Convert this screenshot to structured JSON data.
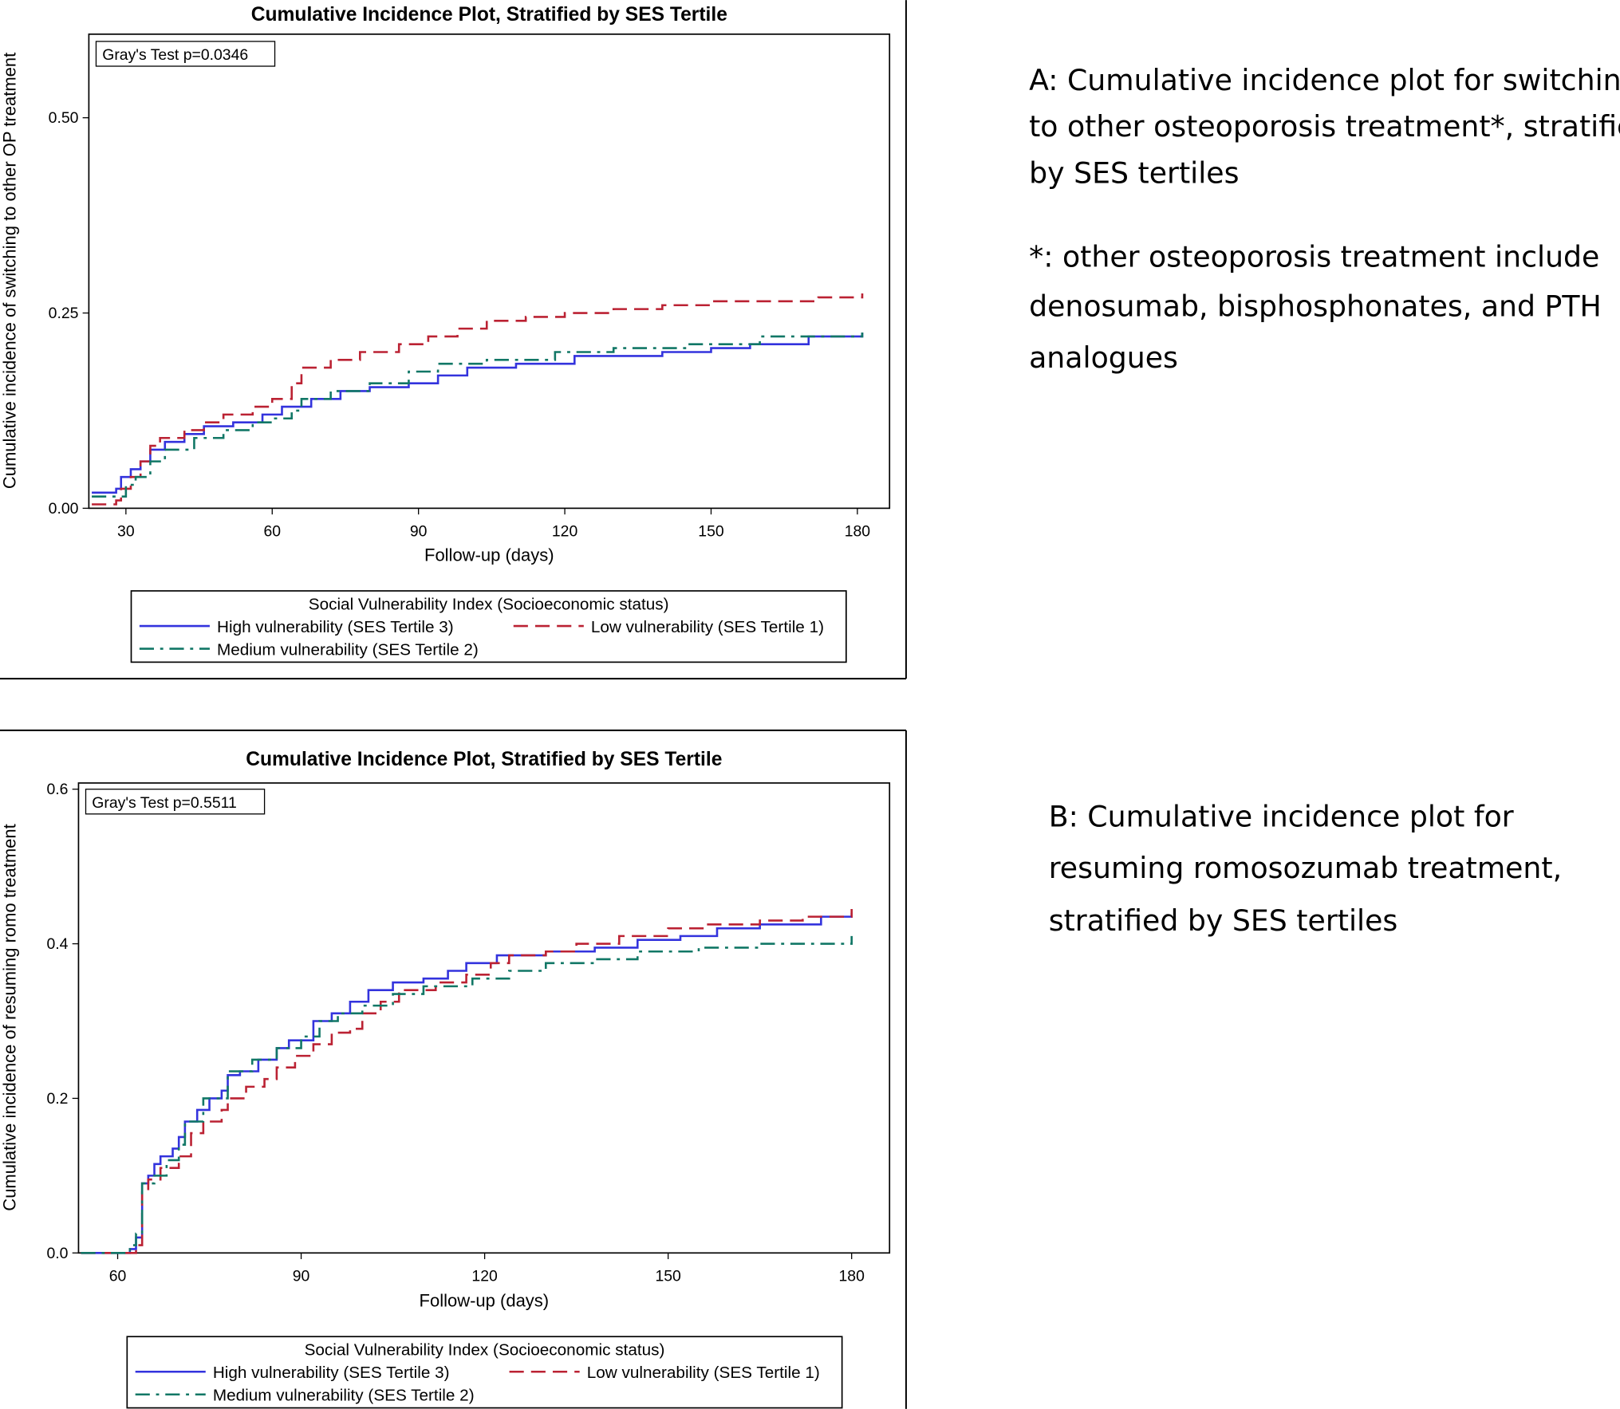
{
  "colors": {
    "high": "#3333dd",
    "low": "#bb2233",
    "medium": "#117766"
  },
  "chart_data": [
    {
      "type": "line",
      "step": true,
      "title": "Cumulative Incidence Plot, Stratified by SES Tertile",
      "annotation": "Gray's Test p=0.0346",
      "xlabel": "Follow-up (days)",
      "ylabel": "Cumulative incidence of switching to other OP treatment",
      "xlim": [
        22.4,
        186.6
      ],
      "ylim": [
        0,
        0.607
      ],
      "xticks": [
        30,
        60,
        90,
        120,
        150,
        180
      ],
      "xtick_labels": [
        "30",
        "60",
        "90",
        "120",
        "150",
        "180"
      ],
      "yticks": [
        0,
        0.25,
        0.5
      ],
      "ytick_labels": [
        "0.00",
        "0.25",
        "0.50"
      ],
      "grid": false,
      "legend": {
        "title": "Social Vulnerability Index (Socioeconomic status)",
        "placement": "bottom"
      },
      "series": [
        {
          "name": "High vulnerability (SES Tertile 3)",
          "style": "solid",
          "color_key": "high",
          "x": [
            23,
            28,
            29,
            31,
            33,
            35,
            38,
            42,
            46,
            52,
            58,
            62,
            68,
            74,
            80,
            88,
            94,
            100,
            110,
            122,
            140,
            150,
            158,
            170,
            181
          ],
          "y": [
            0.02,
            0.025,
            0.04,
            0.05,
            0.06,
            0.075,
            0.085,
            0.095,
            0.105,
            0.11,
            0.12,
            0.13,
            0.14,
            0.15,
            0.155,
            0.16,
            0.17,
            0.18,
            0.185,
            0.195,
            0.2,
            0.205,
            0.21,
            0.22,
            0.225
          ]
        },
        {
          "name": "Low vulnerability (SES Tertile 1)",
          "style": "dash",
          "color_key": "low",
          "x": [
            23,
            28,
            29,
            31,
            33,
            35,
            37,
            42,
            46,
            50,
            56,
            60,
            64,
            66,
            72,
            78,
            86,
            92,
            98,
            104,
            112,
            120,
            130,
            140,
            150,
            162,
            172,
            181
          ],
          "y": [
            0.005,
            0.01,
            0.025,
            0.04,
            0.06,
            0.08,
            0.09,
            0.1,
            0.11,
            0.12,
            0.13,
            0.14,
            0.16,
            0.18,
            0.19,
            0.2,
            0.21,
            0.22,
            0.23,
            0.24,
            0.245,
            0.25,
            0.255,
            0.26,
            0.265,
            0.265,
            0.27,
            0.275
          ]
        },
        {
          "name": "Medium vulnerability (SES Tertile 2)",
          "style": "dashdot",
          "color_key": "medium",
          "x": [
            23,
            28,
            30,
            32,
            35,
            38,
            44,
            50,
            56,
            60,
            64,
            66,
            72,
            80,
            88,
            94,
            104,
            118,
            130,
            145,
            160,
            181
          ],
          "y": [
            0.015,
            0.015,
            0.03,
            0.04,
            0.06,
            0.075,
            0.09,
            0.1,
            0.11,
            0.115,
            0.125,
            0.14,
            0.15,
            0.16,
            0.175,
            0.185,
            0.19,
            0.2,
            0.205,
            0.21,
            0.22,
            0.225
          ]
        }
      ]
    },
    {
      "type": "line",
      "step": true,
      "title": "Cumulative Incidence Plot, Stratified by SES Tertile",
      "annotation": "Gray's Test p=0.5511",
      "xlabel": "Follow-up (days)",
      "ylabel": "Cumulative incidence of resuming romo treatment",
      "xlim": [
        53.6,
        186.2
      ],
      "ylim": [
        0,
        0.608
      ],
      "xticks": [
        60,
        90,
        120,
        150,
        180
      ],
      "xtick_labels": [
        "60",
        "90",
        "120",
        "150",
        "180"
      ],
      "yticks": [
        0,
        0.2,
        0.4,
        0.6
      ],
      "ytick_labels": [
        "0.0",
        "0.2",
        "0.4",
        "0.6"
      ],
      "grid": false,
      "legend": {
        "title": "Social Vulnerability Index (Socioeconomic status)",
        "placement": "bottom"
      },
      "series": [
        {
          "name": "High vulnerability (SES Tertile 3)",
          "style": "solid",
          "color_key": "high",
          "x": [
            54,
            61,
            62,
            63,
            64,
            65,
            66,
            67,
            69,
            70,
            71,
            73,
            75,
            77,
            78,
            80,
            83,
            86,
            88,
            92,
            95,
            98,
            101,
            105,
            110,
            114,
            117,
            122,
            130,
            138,
            145,
            152,
            158,
            165,
            175,
            180
          ],
          "y": [
            0,
            0,
            0.005,
            0.02,
            0.09,
            0.1,
            0.115,
            0.125,
            0.135,
            0.15,
            0.17,
            0.185,
            0.2,
            0.21,
            0.23,
            0.235,
            0.25,
            0.265,
            0.275,
            0.3,
            0.31,
            0.325,
            0.34,
            0.35,
            0.355,
            0.365,
            0.375,
            0.385,
            0.39,
            0.395,
            0.405,
            0.41,
            0.42,
            0.425,
            0.435,
            0.44
          ]
        },
        {
          "name": "Low vulnerability (SES Tertile 1)",
          "style": "dash",
          "color_key": "low",
          "x": [
            54,
            62,
            63,
            64,
            65,
            67,
            70,
            72,
            74,
            77,
            78,
            81,
            84,
            86,
            89,
            92,
            95,
            98,
            100,
            103,
            106,
            112,
            117,
            121,
            124,
            130,
            135,
            142,
            150,
            156,
            165,
            172,
            180
          ],
          "y": [
            0,
            0,
            0.01,
            0.08,
            0.095,
            0.11,
            0.125,
            0.155,
            0.17,
            0.185,
            0.2,
            0.215,
            0.225,
            0.24,
            0.255,
            0.27,
            0.285,
            0.29,
            0.31,
            0.325,
            0.34,
            0.35,
            0.36,
            0.375,
            0.385,
            0.39,
            0.4,
            0.41,
            0.42,
            0.425,
            0.43,
            0.435,
            0.445
          ]
        },
        {
          "name": "Medium vulnerability (SES Tertile 2)",
          "style": "dashdot",
          "color_key": "medium",
          "x": [
            54,
            61,
            62,
            63,
            64,
            66,
            68,
            70,
            71,
            74,
            78,
            82,
            86,
            90,
            93,
            96,
            100,
            105,
            110,
            118,
            124,
            130,
            138,
            145,
            155,
            165,
            180
          ],
          "y": [
            0,
            0,
            0.01,
            0.025,
            0.09,
            0.1,
            0.12,
            0.14,
            0.17,
            0.2,
            0.235,
            0.25,
            0.265,
            0.28,
            0.3,
            0.31,
            0.32,
            0.335,
            0.345,
            0.355,
            0.365,
            0.375,
            0.38,
            0.39,
            0.395,
            0.4,
            0.41
          ]
        }
      ]
    }
  ],
  "captions": {
    "a": [
      "A: Cumulative incidence plot for switching",
      "to other osteoporosis treatment*, stratified",
      "by SES tertiles"
    ],
    "a_note": [
      "*: other osteoporosis treatment include",
      "denosumab, bisphosphonates, and PTH",
      "analogues"
    ],
    "b": [
      "B: Cumulative incidence plot for",
      "resuming romosozumab treatment,",
      "stratified by SES tertiles"
    ]
  }
}
